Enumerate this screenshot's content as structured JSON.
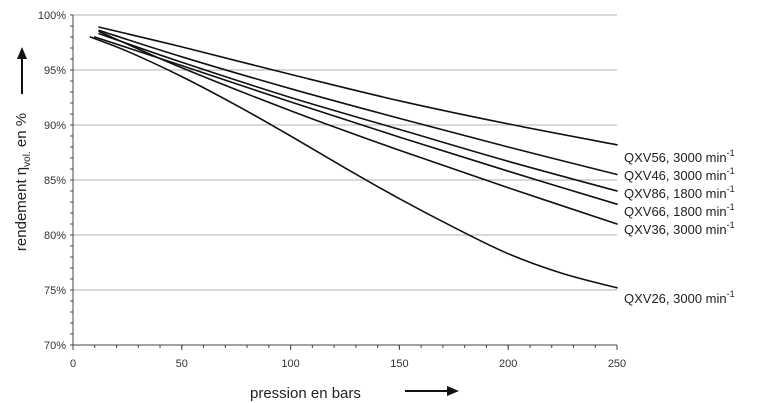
{
  "chart_data": {
    "type": "line",
    "xlabel": "pression en bars",
    "ylabel": "rendement ηvol. en %",
    "ylabel_parts": {
      "prefix": "rendement η",
      "subscript": "vol.",
      "suffix": " en %"
    },
    "xlim": [
      0,
      250
    ],
    "ylim": [
      70,
      100
    ],
    "x_ticks": [
      0,
      50,
      100,
      150,
      200,
      250
    ],
    "y_ticks": [
      {
        "value": 70,
        "label": "70%"
      },
      {
        "value": 75,
        "label": "75%"
      },
      {
        "value": 80,
        "label": "80%"
      },
      {
        "value": 85,
        "label": "85%"
      },
      {
        "value": 90,
        "label": "90%"
      },
      {
        "value": 95,
        "label": "95%"
      },
      {
        "value": 100,
        "label": "100%"
      }
    ],
    "grid": "horizontal",
    "legend": "line-end labels",
    "series": [
      {
        "name": "QXV56, 3000 min-1",
        "label_main": "QXV56, 3000 min",
        "label_sup": "-1",
        "x": [
          12,
          50,
          100,
          150,
          200,
          250
        ],
        "y": [
          98.9,
          97.1,
          94.6,
          92.2,
          90.1,
          88.2
        ]
      },
      {
        "name": "QXV46, 3000 min-1",
        "label_main": "QXV46, 3000 min",
        "label_sup": "-1",
        "x": [
          12,
          50,
          100,
          150,
          200,
          250
        ],
        "y": [
          98.6,
          96.2,
          93.3,
          90.6,
          88.0,
          85.5
        ]
      },
      {
        "name": "QXV86, 1800 min-1",
        "label_main": "QXV86, 1800 min",
        "label_sup": "-1",
        "x": [
          12,
          50,
          100,
          150,
          200,
          250
        ],
        "y": [
          98.3,
          95.7,
          92.5,
          89.6,
          86.7,
          84.0
        ]
      },
      {
        "name": "QXV66, 1800 min-1",
        "label_main": "QXV66, 1800 min",
        "label_sup": "-1",
        "x": [
          10,
          50,
          100,
          150,
          200,
          250
        ],
        "y": [
          98.0,
          95.4,
          92.1,
          88.9,
          85.8,
          82.8
        ]
      },
      {
        "name": "QXV36, 3000 min-1",
        "label_main": "QXV36, 3000 min",
        "label_sup": "-1",
        "x": [
          12,
          50,
          100,
          150,
          200,
          250
        ],
        "y": [
          98.5,
          95.2,
          91.3,
          87.7,
          84.3,
          81.0
        ]
      },
      {
        "name": "QXV26, 3000 min-1",
        "label_main": "QXV26, 3000 min",
        "label_sup": "-1",
        "x": [
          8,
          25,
          50,
          75,
          100,
          125,
          150,
          175,
          200,
          225,
          250
        ],
        "y": [
          98.0,
          96.7,
          94.4,
          91.8,
          89.0,
          86.1,
          83.3,
          80.7,
          78.3,
          76.5,
          75.2
        ]
      }
    ],
    "colors": {
      "line": "#111111",
      "grid": "#b0b0b0",
      "axis": "#444444"
    }
  }
}
